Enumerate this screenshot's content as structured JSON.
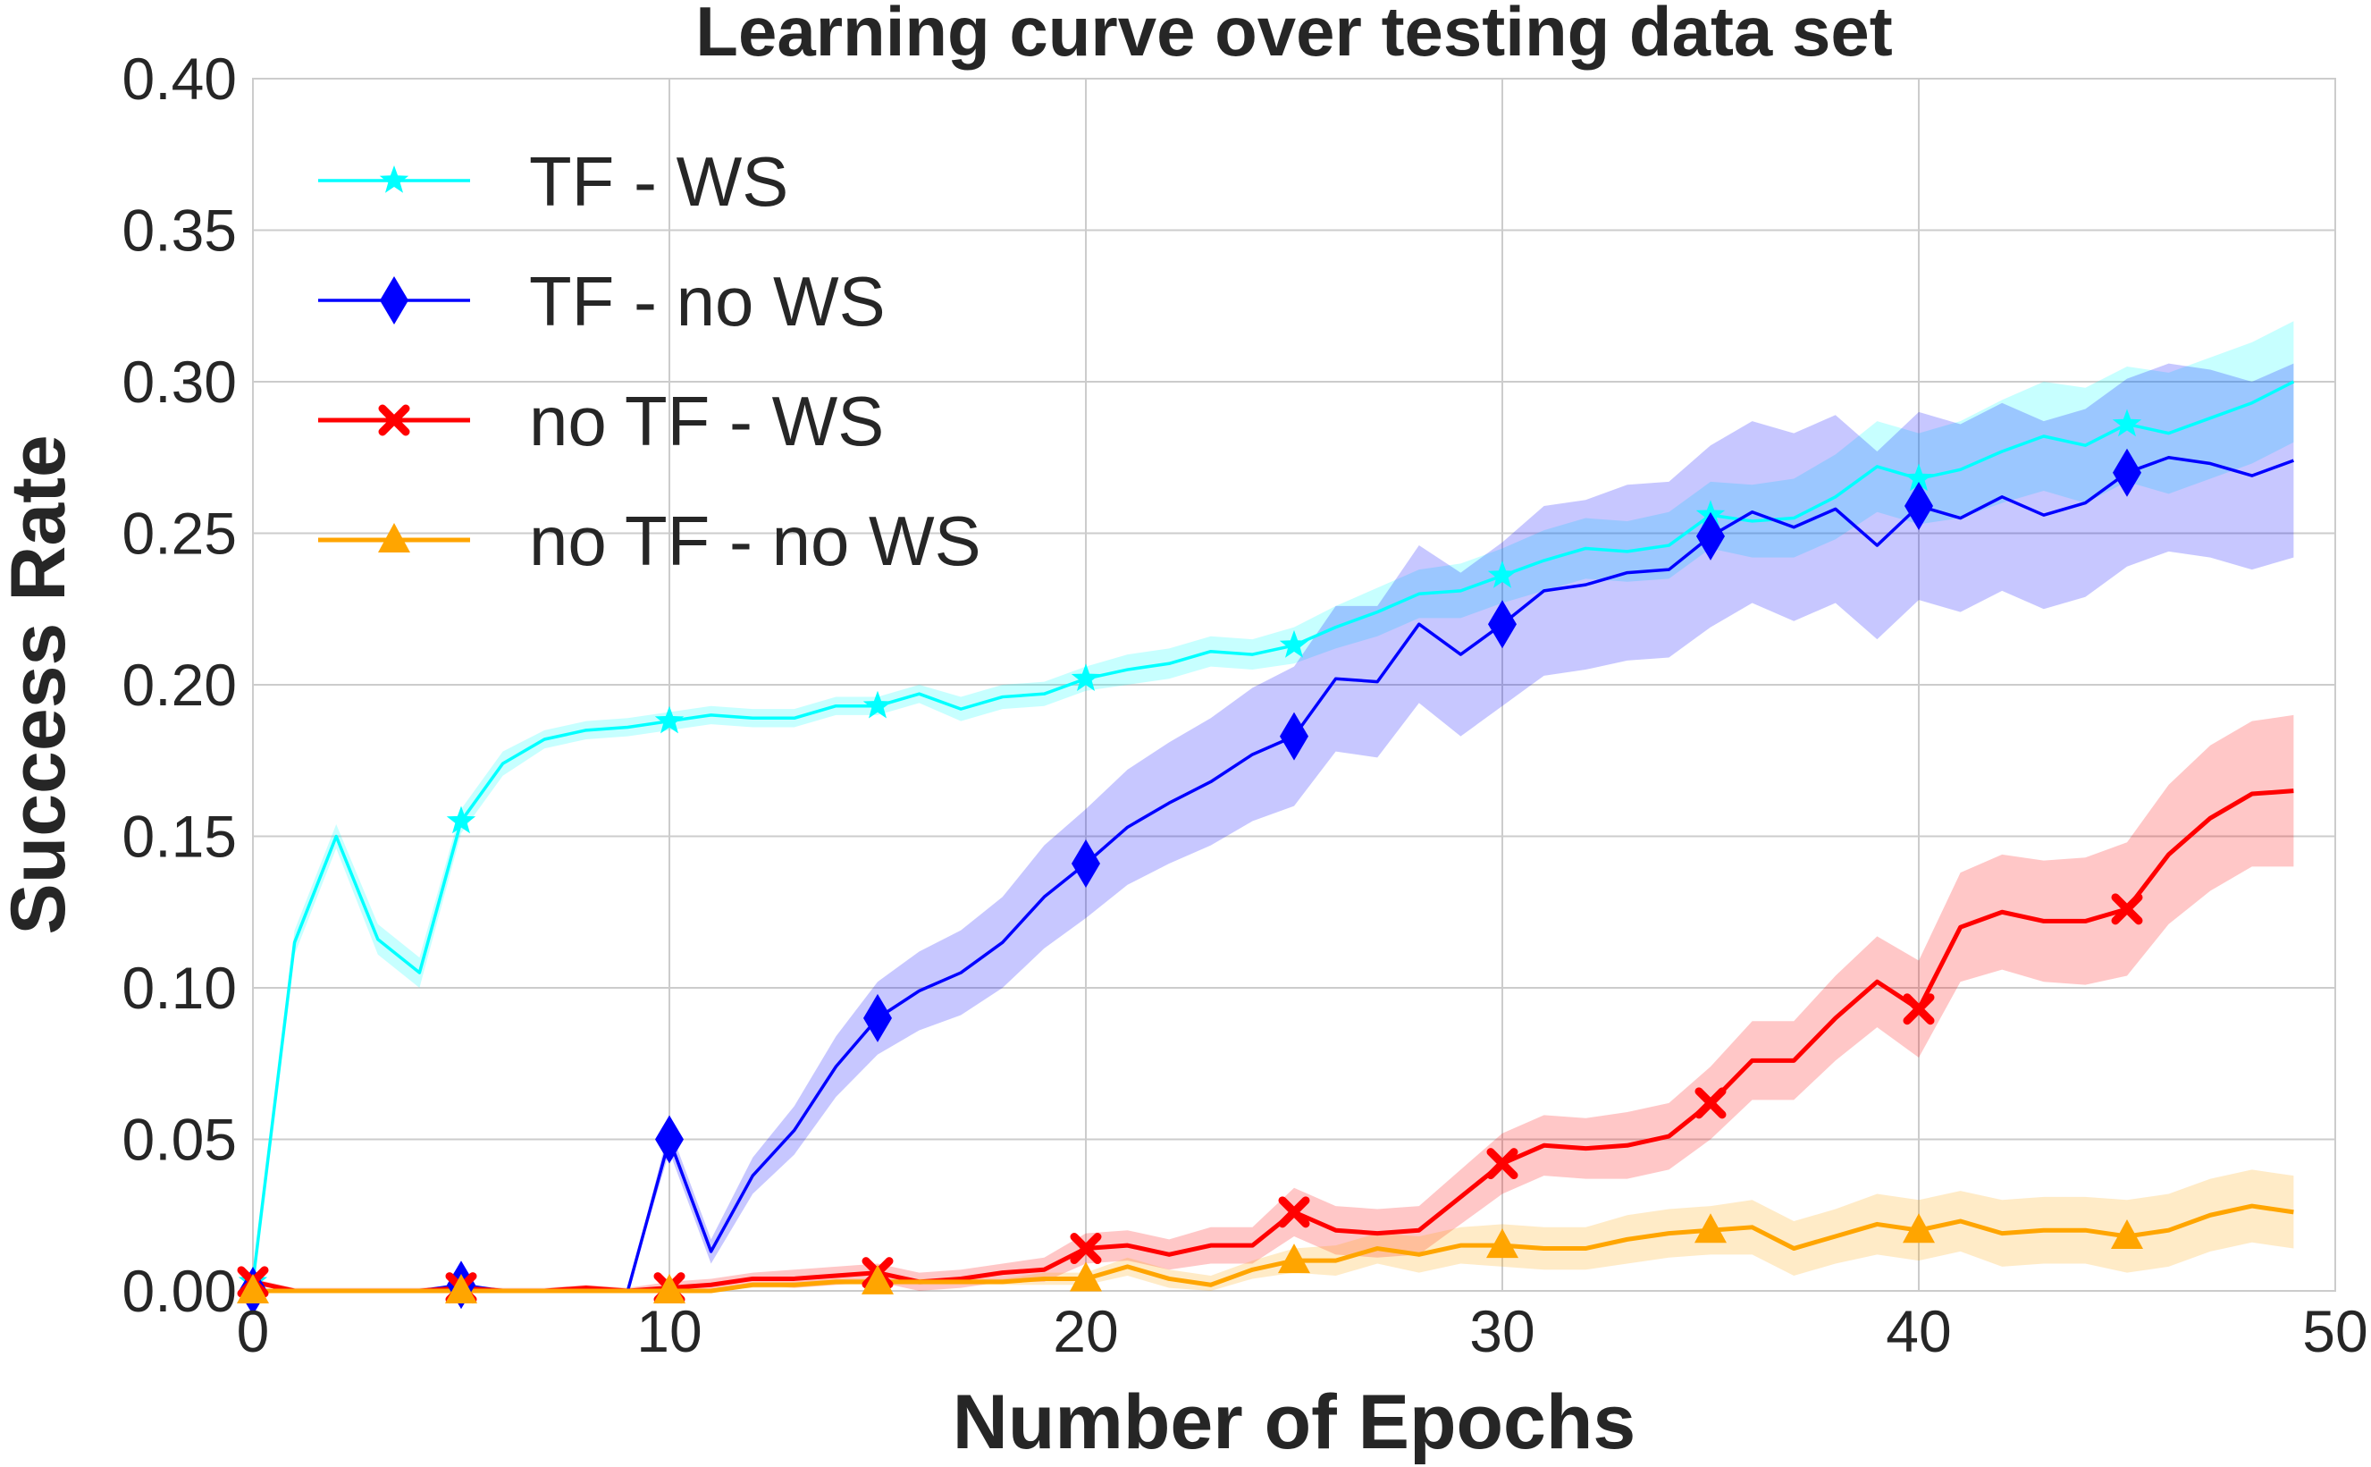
{
  "chart_data": {
    "type": "line",
    "title": "Learning curve over testing data set",
    "xlabel": "Number of Epochs",
    "ylabel": "Success Rate",
    "xlim": [
      0,
      50
    ],
    "ylim": [
      0,
      0.4
    ],
    "xticks": [
      0,
      10,
      20,
      30,
      40,
      50
    ],
    "xtick_labels": [
      "0",
      "10",
      "20",
      "30",
      "40",
      "50"
    ],
    "yticks": [
      0,
      0.05,
      0.1,
      0.15,
      0.2,
      0.25,
      0.3,
      0.35,
      0.4
    ],
    "ytick_labels": [
      "0.00",
      "0.05",
      "0.10",
      "0.15",
      "0.20",
      "0.25",
      "0.30",
      "0.35",
      "0.40"
    ],
    "grid": true,
    "legend_position": "top-left",
    "marker_every": 5,
    "x": [
      0,
      1,
      2,
      3,
      4,
      5,
      6,
      7,
      8,
      9,
      10,
      11,
      12,
      13,
      14,
      15,
      16,
      17,
      18,
      19,
      20,
      21,
      22,
      23,
      24,
      25,
      26,
      27,
      28,
      29,
      30,
      31,
      32,
      33,
      34,
      35,
      36,
      37,
      38,
      39,
      40,
      41,
      42,
      43,
      44,
      45,
      46,
      47,
      48,
      49
    ],
    "series": [
      {
        "name": "TF - WS",
        "color": "#00ffff",
        "marker": "star",
        "values": [
          0.003,
          0.115,
          0.15,
          0.116,
          0.105,
          0.155,
          0.174,
          0.182,
          0.185,
          0.186,
          0.188,
          0.19,
          0.189,
          0.189,
          0.193,
          0.193,
          0.197,
          0.192,
          0.196,
          0.197,
          0.202,
          0.205,
          0.207,
          0.211,
          0.21,
          0.213,
          0.219,
          0.224,
          0.23,
          0.231,
          0.236,
          0.241,
          0.245,
          0.244,
          0.246,
          0.256,
          0.254,
          0.255,
          0.262,
          0.272,
          0.268,
          0.271,
          0.277,
          0.282,
          0.279,
          0.286,
          0.283,
          0.288,
          0.293,
          0.3
        ],
        "band": [
          0.003,
          0.004,
          0.004,
          0.005,
          0.005,
          0.004,
          0.004,
          0.003,
          0.003,
          0.003,
          0.003,
          0.003,
          0.003,
          0.003,
          0.003,
          0.003,
          0.003,
          0.004,
          0.004,
          0.004,
          0.004,
          0.005,
          0.005,
          0.005,
          0.005,
          0.006,
          0.007,
          0.008,
          0.008,
          0.009,
          0.009,
          0.01,
          0.01,
          0.01,
          0.011,
          0.011,
          0.012,
          0.013,
          0.014,
          0.015,
          0.015,
          0.016,
          0.017,
          0.018,
          0.019,
          0.019,
          0.02,
          0.02,
          0.02,
          0.02
        ]
      },
      {
        "name": "TF - no WS",
        "color": "#0000ff",
        "marker": "diamond",
        "values": [
          0,
          0,
          0,
          0,
          0,
          0.002,
          0,
          0,
          0,
          0,
          0.05,
          0.013,
          0.038,
          0.053,
          0.074,
          0.09,
          0.099,
          0.105,
          0.115,
          0.13,
          0.141,
          0.153,
          0.161,
          0.168,
          0.177,
          0.183,
          0.202,
          0.201,
          0.22,
          0.21,
          0.22,
          0.231,
          0.233,
          0.237,
          0.238,
          0.249,
          0.257,
          0.252,
          0.258,
          0.246,
          0.259,
          0.255,
          0.262,
          0.256,
          0.26,
          0.27,
          0.275,
          0.273,
          0.269,
          0.274
        ],
        "band": [
          0,
          0,
          0,
          0,
          0,
          0.001,
          0,
          0,
          0,
          0,
          0.004,
          0.004,
          0.006,
          0.008,
          0.01,
          0.012,
          0.013,
          0.014,
          0.015,
          0.017,
          0.018,
          0.019,
          0.02,
          0.021,
          0.022,
          0.023,
          0.024,
          0.025,
          0.026,
          0.027,
          0.027,
          0.028,
          0.028,
          0.029,
          0.029,
          0.03,
          0.03,
          0.031,
          0.031,
          0.031,
          0.031,
          0.031,
          0.031,
          0.031,
          0.031,
          0.031,
          0.031,
          0.031,
          0.031,
          0.032
        ]
      },
      {
        "name": "no TF - WS",
        "color": "#ff0000",
        "marker": "x",
        "values": [
          0.003,
          0,
          0,
          0,
          0,
          0.001,
          0,
          0,
          0.001,
          0,
          0.001,
          0.002,
          0.004,
          0.004,
          0.005,
          0.006,
          0.003,
          0.004,
          0.006,
          0.007,
          0.014,
          0.015,
          0.012,
          0.015,
          0.015,
          0.026,
          0.02,
          0.019,
          0.02,
          0.031,
          0.042,
          0.048,
          0.047,
          0.048,
          0.051,
          0.062,
          0.076,
          0.076,
          0.09,
          0.102,
          0.093,
          0.12,
          0.125,
          0.122,
          0.122,
          0.126,
          0.144,
          0.156,
          0.164,
          0.165
        ],
        "band": [
          0.001,
          0.001,
          0.001,
          0.001,
          0.001,
          0.001,
          0.001,
          0.001,
          0.001,
          0.001,
          0.002,
          0.002,
          0.002,
          0.003,
          0.003,
          0.003,
          0.003,
          0.003,
          0.003,
          0.004,
          0.005,
          0.005,
          0.005,
          0.006,
          0.006,
          0.008,
          0.008,
          0.008,
          0.008,
          0.009,
          0.01,
          0.01,
          0.01,
          0.011,
          0.011,
          0.012,
          0.013,
          0.013,
          0.014,
          0.015,
          0.016,
          0.018,
          0.019,
          0.02,
          0.021,
          0.022,
          0.023,
          0.024,
          0.024,
          0.025
        ]
      },
      {
        "name": "no TF - no WS",
        "color": "#ffa500",
        "marker": "triangle",
        "values": [
          0,
          0,
          0,
          0,
          0,
          0,
          0,
          0,
          0,
          0,
          0,
          0,
          0.002,
          0.002,
          0.003,
          0.003,
          0.003,
          0.003,
          0.003,
          0.004,
          0.004,
          0.008,
          0.004,
          0.002,
          0.007,
          0.01,
          0.01,
          0.014,
          0.012,
          0.015,
          0.015,
          0.014,
          0.014,
          0.017,
          0.019,
          0.02,
          0.021,
          0.014,
          0.018,
          0.022,
          0.02,
          0.023,
          0.019,
          0.02,
          0.02,
          0.018,
          0.02,
          0.025,
          0.028,
          0.026
        ],
        "band": [
          0,
          0,
          0,
          0,
          0,
          0,
          0,
          0,
          0,
          0,
          0,
          0,
          0.001,
          0.001,
          0.001,
          0.001,
          0.001,
          0.001,
          0.001,
          0.002,
          0.002,
          0.003,
          0.003,
          0.003,
          0.003,
          0.004,
          0.005,
          0.005,
          0.006,
          0.006,
          0.007,
          0.007,
          0.007,
          0.008,
          0.008,
          0.008,
          0.009,
          0.009,
          0.009,
          0.01,
          0.01,
          0.01,
          0.011,
          0.011,
          0.011,
          0.012,
          0.012,
          0.012,
          0.012,
          0.012
        ]
      }
    ]
  }
}
